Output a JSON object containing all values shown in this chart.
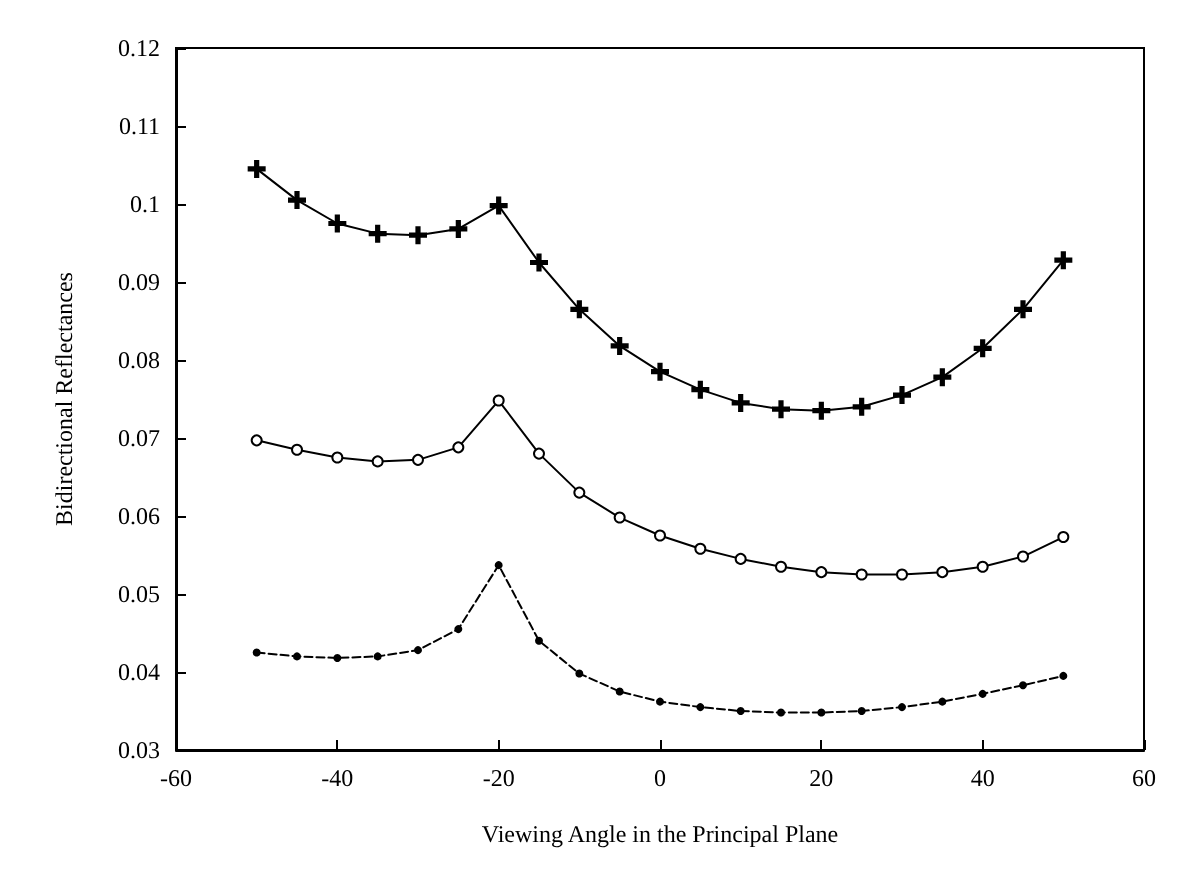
{
  "chart_data": {
    "type": "line",
    "xlabel": "Viewing Angle in the Principal Plane",
    "ylabel": "Bidirectional Reflectances",
    "x": [
      -50,
      -45,
      -40,
      -35,
      -30,
      -25,
      -20,
      -15,
      -10,
      -5,
      0,
      5,
      10,
      15,
      20,
      25,
      30,
      35,
      40,
      45,
      50
    ],
    "series": [
      {
        "color": "#000000",
        "marker": "cross",
        "line_style": "solid",
        "values": [
          0.1045,
          0.1005,
          0.0975,
          0.0962,
          0.096,
          0.0968,
          0.0998,
          0.0925,
          0.0865,
          0.0818,
          0.0785,
          0.0762,
          0.0745,
          0.0737,
          0.0735,
          0.074,
          0.0755,
          0.0778,
          0.0815,
          0.0865,
          0.0928
        ]
      },
      {
        "color": "#000000",
        "marker": "circle",
        "line_style": "solid",
        "values": [
          0.0697,
          0.0685,
          0.0675,
          0.067,
          0.0672,
          0.0688,
          0.0748,
          0.068,
          0.063,
          0.0598,
          0.0575,
          0.0558,
          0.0545,
          0.0535,
          0.0528,
          0.0525,
          0.0525,
          0.0528,
          0.0535,
          0.0548,
          0.0573
        ]
      },
      {
        "color": "#000000",
        "marker": "circle",
        "line_style": "dashed",
        "values": [
          0.0425,
          0.042,
          0.0418,
          0.042,
          0.0428,
          0.0455,
          0.0537,
          0.044,
          0.0398,
          0.0375,
          0.0362,
          0.0355,
          0.035,
          0.0348,
          0.0348,
          0.035,
          0.0355,
          0.0362,
          0.0372,
          0.0383,
          0.0395
        ]
      }
    ],
    "xlim": [
      -60,
      60
    ],
    "xticks": [
      -60,
      -40,
      -20,
      0,
      20,
      40,
      60
    ],
    "ylim": [
      0.03,
      0.12
    ],
    "yticks": [
      0.03,
      0.04,
      0.05,
      0.06,
      0.07,
      0.08,
      0.09,
      0.1,
      0.11,
      0.12
    ],
    "grid": false
  }
}
